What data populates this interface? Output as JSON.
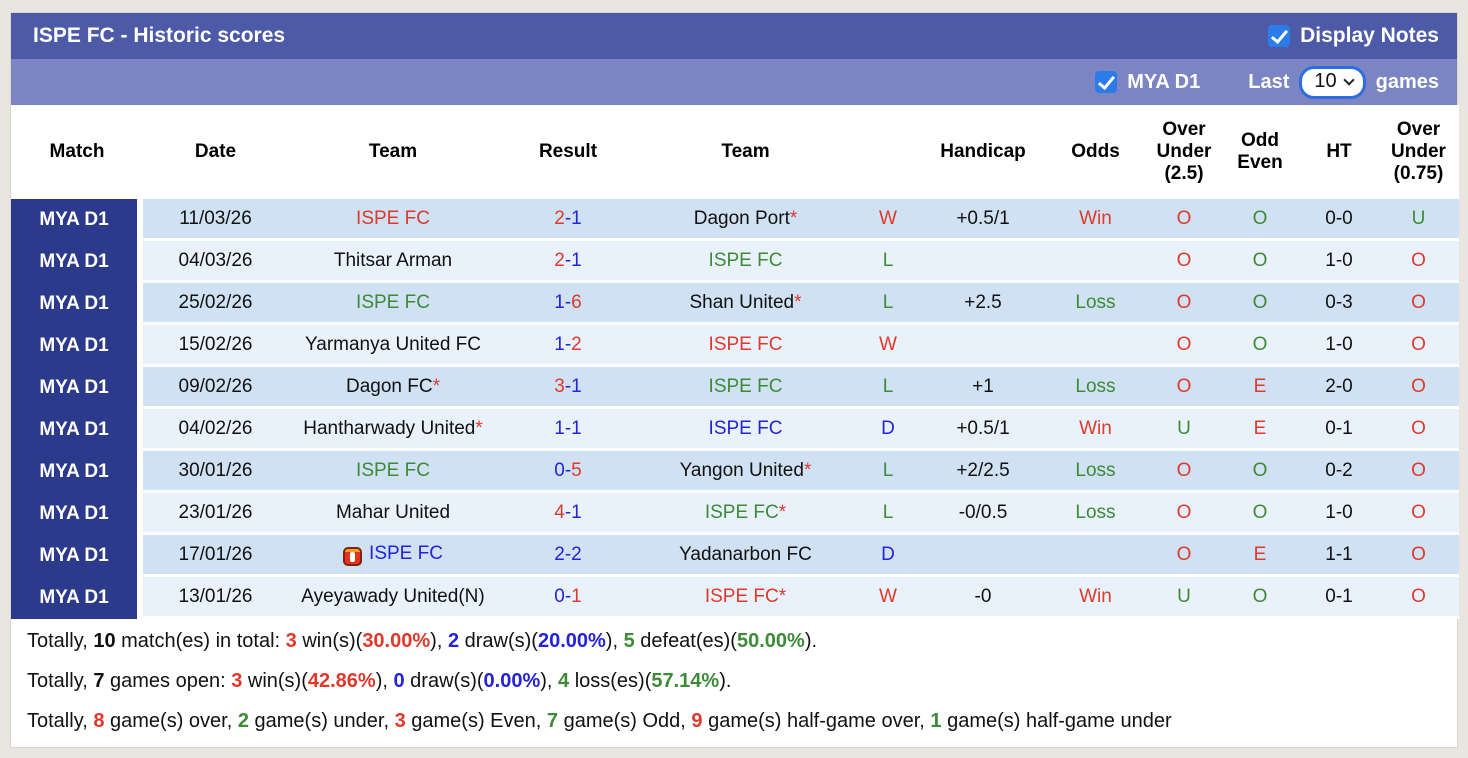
{
  "header": {
    "title": "ISPE FC - Historic scores",
    "display_notes_label": "Display Notes"
  },
  "filter_bar": {
    "league_label": "MYA D1",
    "last_label": "Last",
    "games_count": "10",
    "games_label": "games"
  },
  "colors": {
    "header_bar": "#4d5aa8",
    "subheader_bar": "#7b85c4",
    "league_column": "#2c3a8c",
    "row_odd": "#cfe1f2",
    "row_even": "#e9f2fb",
    "checkbox_blue": "#2b7ce9",
    "win_red": "#e0392c",
    "loss_green": "#3d8b37",
    "draw_blue": "#2323d9"
  },
  "table": {
    "columns": [
      "Match",
      "Date",
      "Team",
      "Result",
      "Team",
      "",
      "Handicap",
      "Odds",
      "Over Under (2.5)",
      "Odd Even",
      "HT",
      "Over Under (0.75)"
    ],
    "rows": [
      {
        "league": "MYA D1",
        "date": "11/03/26",
        "team1": {
          "name": "ISPE FC",
          "color": "red",
          "star": false,
          "icon": false
        },
        "result": {
          "h": "2",
          "a": "1",
          "hc": "red",
          "ac": "blue"
        },
        "team2": {
          "name": "Dagon Port",
          "color": "black",
          "star": true,
          "icon": false
        },
        "wld": {
          "text": "W",
          "color": "red"
        },
        "handicap": "+0.5/1",
        "odds": {
          "text": "Win",
          "color": "red"
        },
        "ou25": {
          "text": "O",
          "color": "red"
        },
        "oe": {
          "text": "O",
          "color": "green"
        },
        "ht": "0-0",
        "ou075": {
          "text": "U",
          "color": "green"
        }
      },
      {
        "league": "MYA D1",
        "date": "04/03/26",
        "team1": {
          "name": "Thitsar Arman",
          "color": "black",
          "star": false,
          "icon": false
        },
        "result": {
          "h": "2",
          "a": "1",
          "hc": "red",
          "ac": "blue"
        },
        "team2": {
          "name": "ISPE FC",
          "color": "green",
          "star": false,
          "icon": false
        },
        "wld": {
          "text": "L",
          "color": "green"
        },
        "handicap": "",
        "odds": {
          "text": "",
          "color": "black"
        },
        "ou25": {
          "text": "O",
          "color": "red"
        },
        "oe": {
          "text": "O",
          "color": "green"
        },
        "ht": "1-0",
        "ou075": {
          "text": "O",
          "color": "red"
        }
      },
      {
        "league": "MYA D1",
        "date": "25/02/26",
        "team1": {
          "name": "ISPE FC",
          "color": "green",
          "star": false,
          "icon": false
        },
        "result": {
          "h": "1",
          "a": "6",
          "hc": "blue",
          "ac": "red"
        },
        "team2": {
          "name": "Shan United",
          "color": "black",
          "star": true,
          "icon": false
        },
        "wld": {
          "text": "L",
          "color": "green"
        },
        "handicap": "+2.5",
        "odds": {
          "text": "Loss",
          "color": "green"
        },
        "ou25": {
          "text": "O",
          "color": "red"
        },
        "oe": {
          "text": "O",
          "color": "green"
        },
        "ht": "0-3",
        "ou075": {
          "text": "O",
          "color": "red"
        }
      },
      {
        "league": "MYA D1",
        "date": "15/02/26",
        "team1": {
          "name": "Yarmanya United FC",
          "color": "black",
          "star": false,
          "icon": false
        },
        "result": {
          "h": "1",
          "a": "2",
          "hc": "blue",
          "ac": "red"
        },
        "team2": {
          "name": "ISPE FC",
          "color": "red",
          "star": false,
          "icon": false
        },
        "wld": {
          "text": "W",
          "color": "red"
        },
        "handicap": "",
        "odds": {
          "text": "",
          "color": "black"
        },
        "ou25": {
          "text": "O",
          "color": "red"
        },
        "oe": {
          "text": "O",
          "color": "green"
        },
        "ht": "1-0",
        "ou075": {
          "text": "O",
          "color": "red"
        }
      },
      {
        "league": "MYA D1",
        "date": "09/02/26",
        "team1": {
          "name": "Dagon FC",
          "color": "black",
          "star": true,
          "icon": false
        },
        "result": {
          "h": "3",
          "a": "1",
          "hc": "red",
          "ac": "blue"
        },
        "team2": {
          "name": "ISPE FC",
          "color": "green",
          "star": false,
          "icon": false
        },
        "wld": {
          "text": "L",
          "color": "green"
        },
        "handicap": "+1",
        "odds": {
          "text": "Loss",
          "color": "green"
        },
        "ou25": {
          "text": "O",
          "color": "red"
        },
        "oe": {
          "text": "E",
          "color": "red"
        },
        "ht": "2-0",
        "ou075": {
          "text": "O",
          "color": "red"
        }
      },
      {
        "league": "MYA D1",
        "date": "04/02/26",
        "team1": {
          "name": "Hantharwady United",
          "color": "black",
          "star": true,
          "icon": false
        },
        "result": {
          "h": "1",
          "a": "1",
          "hc": "blue",
          "ac": "blue"
        },
        "team2": {
          "name": "ISPE FC",
          "color": "blue",
          "star": false,
          "icon": false
        },
        "wld": {
          "text": "D",
          "color": "blue"
        },
        "handicap": "+0.5/1",
        "odds": {
          "text": "Win",
          "color": "red"
        },
        "ou25": {
          "text": "U",
          "color": "green"
        },
        "oe": {
          "text": "E",
          "color": "red"
        },
        "ht": "0-1",
        "ou075": {
          "text": "O",
          "color": "red"
        }
      },
      {
        "league": "MYA D1",
        "date": "30/01/26",
        "team1": {
          "name": "ISPE FC",
          "color": "green",
          "star": false,
          "icon": false
        },
        "result": {
          "h": "0",
          "a": "5",
          "hc": "blue",
          "ac": "red"
        },
        "team2": {
          "name": "Yangon United",
          "color": "black",
          "star": true,
          "icon": false
        },
        "wld": {
          "text": "L",
          "color": "green"
        },
        "handicap": "+2/2.5",
        "odds": {
          "text": "Loss",
          "color": "green"
        },
        "ou25": {
          "text": "O",
          "color": "red"
        },
        "oe": {
          "text": "O",
          "color": "green"
        },
        "ht": "0-2",
        "ou075": {
          "text": "O",
          "color": "red"
        }
      },
      {
        "league": "MYA D1",
        "date": "23/01/26",
        "team1": {
          "name": "Mahar United",
          "color": "black",
          "star": false,
          "icon": false
        },
        "result": {
          "h": "4",
          "a": "1",
          "hc": "red",
          "ac": "blue"
        },
        "team2": {
          "name": "ISPE FC",
          "color": "green",
          "star": true,
          "icon": false
        },
        "wld": {
          "text": "L",
          "color": "green"
        },
        "handicap": "-0/0.5",
        "odds": {
          "text": "Loss",
          "color": "green"
        },
        "ou25": {
          "text": "O",
          "color": "red"
        },
        "oe": {
          "text": "O",
          "color": "green"
        },
        "ht": "1-0",
        "ou075": {
          "text": "O",
          "color": "red"
        }
      },
      {
        "league": "MYA D1",
        "date": "17/01/26",
        "team1": {
          "name": "ISPE FC",
          "color": "blue",
          "star": false,
          "icon": true
        },
        "result": {
          "h": "2",
          "a": "2",
          "hc": "blue",
          "ac": "blue"
        },
        "team2": {
          "name": "Yadanarbon FC",
          "color": "black",
          "star": false,
          "icon": false
        },
        "wld": {
          "text": "D",
          "color": "blue"
        },
        "handicap": "",
        "odds": {
          "text": "",
          "color": "black"
        },
        "ou25": {
          "text": "O",
          "color": "red"
        },
        "oe": {
          "text": "E",
          "color": "red"
        },
        "ht": "1-1",
        "ou075": {
          "text": "O",
          "color": "red"
        }
      },
      {
        "league": "MYA D1",
        "date": "13/01/26",
        "team1": {
          "name": "Ayeyawady United(N)",
          "color": "black",
          "star": false,
          "icon": false
        },
        "result": {
          "h": "0",
          "a": "1",
          "hc": "blue",
          "ac": "red"
        },
        "team2": {
          "name": "ISPE FC",
          "color": "red",
          "star": true,
          "icon": false
        },
        "wld": {
          "text": "W",
          "color": "red"
        },
        "handicap": "-0",
        "odds": {
          "text": "Win",
          "color": "red"
        },
        "ou25": {
          "text": "U",
          "color": "green"
        },
        "oe": {
          "text": "O",
          "color": "green"
        },
        "ht": "0-1",
        "ou075": {
          "text": "O",
          "color": "red"
        }
      }
    ]
  },
  "summary": {
    "lines": [
      [
        {
          "t": "Totally, ",
          "c": "black"
        },
        {
          "t": "10",
          "c": "black",
          "b": 1
        },
        {
          "t": " match(es) in total: ",
          "c": "black"
        },
        {
          "t": "3",
          "c": "red",
          "b": 1
        },
        {
          "t": " win(s)(",
          "c": "black"
        },
        {
          "t": "30.00%",
          "c": "red",
          "b": 1
        },
        {
          "t": "), ",
          "c": "black"
        },
        {
          "t": "2",
          "c": "blue",
          "b": 1
        },
        {
          "t": " draw(s)(",
          "c": "black"
        },
        {
          "t": "20.00%",
          "c": "blue",
          "b": 1
        },
        {
          "t": "), ",
          "c": "black"
        },
        {
          "t": "5",
          "c": "green",
          "b": 1
        },
        {
          "t": " defeat(es)(",
          "c": "black"
        },
        {
          "t": "50.00%",
          "c": "green",
          "b": 1
        },
        {
          "t": ").",
          "c": "black"
        }
      ],
      [
        {
          "t": "Totally, ",
          "c": "black"
        },
        {
          "t": "7",
          "c": "black",
          "b": 1
        },
        {
          "t": " games open: ",
          "c": "black"
        },
        {
          "t": "3",
          "c": "red",
          "b": 1
        },
        {
          "t": " win(s)(",
          "c": "black"
        },
        {
          "t": "42.86%",
          "c": "red",
          "b": 1
        },
        {
          "t": "), ",
          "c": "black"
        },
        {
          "t": "0",
          "c": "blue",
          "b": 1
        },
        {
          "t": " draw(s)(",
          "c": "black"
        },
        {
          "t": "0.00%",
          "c": "blue",
          "b": 1
        },
        {
          "t": "), ",
          "c": "black"
        },
        {
          "t": "4",
          "c": "green",
          "b": 1
        },
        {
          "t": " loss(es)(",
          "c": "black"
        },
        {
          "t": "57.14%",
          "c": "green",
          "b": 1
        },
        {
          "t": ").",
          "c": "black"
        }
      ],
      [
        {
          "t": "Totally, ",
          "c": "black"
        },
        {
          "t": "8",
          "c": "red",
          "b": 1
        },
        {
          "t": " game(s) over, ",
          "c": "black"
        },
        {
          "t": "2",
          "c": "green",
          "b": 1
        },
        {
          "t": " game(s) under, ",
          "c": "black"
        },
        {
          "t": "3",
          "c": "red",
          "b": 1
        },
        {
          "t": " game(s) Even, ",
          "c": "black"
        },
        {
          "t": "7",
          "c": "green",
          "b": 1
        },
        {
          "t": " game(s) Odd, ",
          "c": "black"
        },
        {
          "t": "9",
          "c": "red",
          "b": 1
        },
        {
          "t": " game(s) half-game over, ",
          "c": "black"
        },
        {
          "t": "1",
          "c": "green",
          "b": 1
        },
        {
          "t": " game(s) half-game under",
          "c": "black"
        }
      ]
    ]
  }
}
